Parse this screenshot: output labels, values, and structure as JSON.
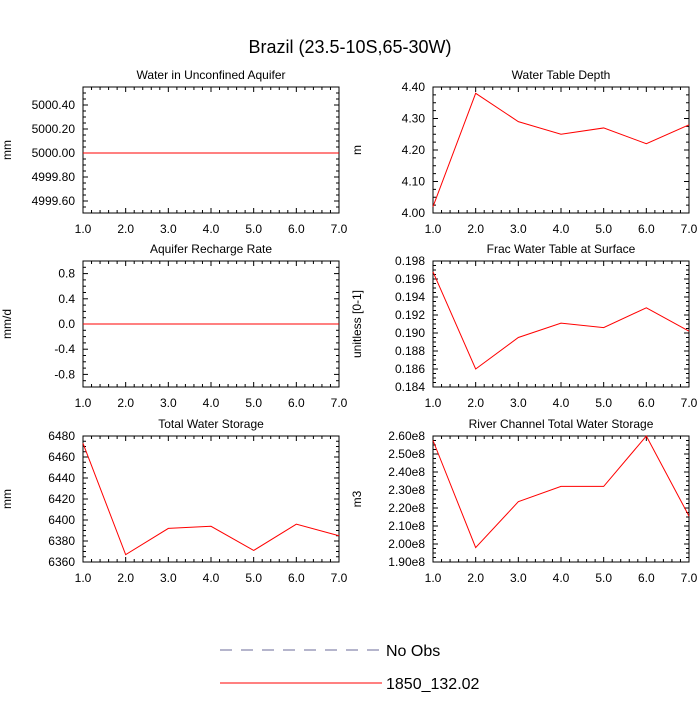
{
  "figure": {
    "title": "Brazil (23.5-10S,65-30W)"
  },
  "legend": {
    "placement": "bottom-center",
    "entries": [
      {
        "label": "No Obs",
        "color": "#6b6b9a",
        "dash": "dashed"
      },
      {
        "label": "1850_132.02",
        "color": "#ff0000",
        "dash": "solid"
      }
    ]
  },
  "chart_data": [
    {
      "type": "line",
      "title": "Water in Unconfined Aquifer",
      "ylabel": "mm",
      "xlim": [
        1,
        7
      ],
      "xticks": [
        1,
        2,
        3,
        4,
        5,
        6,
        7
      ],
      "xtick_labels": [
        "1.0",
        "2.0",
        "3.0",
        "4.0",
        "5.0",
        "6.0",
        "7.0"
      ],
      "ylim": [
        4999.5,
        5000.55
      ],
      "yticks": [
        4999.6,
        4999.8,
        5000.0,
        5000.2,
        5000.4
      ],
      "ytick_labels": [
        "4999.60",
        "4999.80",
        "5000.00",
        "5000.20",
        "5000.40"
      ],
      "series": [
        {
          "name": "1850_132.02",
          "color": "#ff0000",
          "x": [
            1,
            2,
            3,
            4,
            5,
            6,
            7
          ],
          "y": [
            5000.0,
            5000.0,
            5000.0,
            5000.0,
            5000.0,
            5000.0,
            5000.0
          ]
        }
      ]
    },
    {
      "type": "line",
      "title": "Water Table Depth",
      "ylabel": "m",
      "xlim": [
        1,
        7
      ],
      "xticks": [
        1,
        2,
        3,
        4,
        5,
        6,
        7
      ],
      "xtick_labels": [
        "1.0",
        "2.0",
        "3.0",
        "4.0",
        "5.0",
        "6.0",
        "7.0"
      ],
      "ylim": [
        4.0,
        4.4
      ],
      "yticks": [
        4.0,
        4.1,
        4.2,
        4.3,
        4.4
      ],
      "ytick_labels": [
        "4.00",
        "4.10",
        "4.20",
        "4.30",
        "4.40"
      ],
      "series": [
        {
          "name": "1850_132.02",
          "color": "#ff0000",
          "x": [
            1,
            2,
            3,
            4,
            5,
            6,
            7
          ],
          "y": [
            4.02,
            4.38,
            4.29,
            4.25,
            4.27,
            4.22,
            4.28
          ]
        }
      ]
    },
    {
      "type": "line",
      "title": "Aquifer Recharge Rate",
      "ylabel": "mm/d",
      "xlim": [
        1,
        7
      ],
      "xticks": [
        1,
        2,
        3,
        4,
        5,
        6,
        7
      ],
      "xtick_labels": [
        "1.0",
        "2.0",
        "3.0",
        "4.0",
        "5.0",
        "6.0",
        "7.0"
      ],
      "ylim": [
        -1.0,
        1.0
      ],
      "yticks": [
        -0.8,
        -0.4,
        0.0,
        0.4,
        0.8
      ],
      "ytick_labels": [
        "-0.8",
        "-0.4",
        "0.0",
        "0.4",
        "0.8"
      ],
      "series": [
        {
          "name": "1850_132.02",
          "color": "#ff0000",
          "x": [
            1,
            2,
            3,
            4,
            5,
            6,
            7
          ],
          "y": [
            0,
            0,
            0,
            0,
            0,
            0,
            0
          ]
        }
      ]
    },
    {
      "type": "line",
      "title": "Frac Water Table at Surface",
      "ylabel": "unitless [0-1]",
      "xlim": [
        1,
        7
      ],
      "xticks": [
        1,
        2,
        3,
        4,
        5,
        6,
        7
      ],
      "xtick_labels": [
        "1.0",
        "2.0",
        "3.0",
        "4.0",
        "5.0",
        "6.0",
        "7.0"
      ],
      "ylim": [
        0.184,
        0.198
      ],
      "yticks": [
        0.184,
        0.186,
        0.188,
        0.19,
        0.192,
        0.194,
        0.196,
        0.198
      ],
      "ytick_labels": [
        "0.184",
        "0.186",
        "0.188",
        "0.190",
        "0.192",
        "0.194",
        "0.196",
        "0.198"
      ],
      "series": [
        {
          "name": "1850_132.02",
          "color": "#ff0000",
          "x": [
            1,
            2,
            3,
            4,
            5,
            6,
            7
          ],
          "y": [
            0.1968,
            0.186,
            0.1895,
            0.1911,
            0.1906,
            0.1928,
            0.1902
          ]
        }
      ]
    },
    {
      "type": "line",
      "title": "Total Water Storage",
      "ylabel": "mm",
      "xlim": [
        1,
        7
      ],
      "xticks": [
        1,
        2,
        3,
        4,
        5,
        6,
        7
      ],
      "xtick_labels": [
        "1.0",
        "2.0",
        "3.0",
        "4.0",
        "5.0",
        "6.0",
        "7.0"
      ],
      "ylim": [
        6360,
        6480
      ],
      "yticks": [
        6360,
        6380,
        6400,
        6420,
        6440,
        6460,
        6480
      ],
      "ytick_labels": [
        "6360",
        "6380",
        "6400",
        "6420",
        "6440",
        "6460",
        "6480"
      ],
      "series": [
        {
          "name": "1850_132.02",
          "color": "#ff0000",
          "x": [
            1,
            2,
            3,
            4,
            5,
            6,
            7
          ],
          "y": [
            6473,
            6367,
            6392,
            6394,
            6371,
            6396,
            6385
          ]
        }
      ]
    },
    {
      "type": "line",
      "title": "River Channel Total Water Storage",
      "ylabel": "m3",
      "xlim": [
        1,
        7
      ],
      "xticks": [
        1,
        2,
        3,
        4,
        5,
        6,
        7
      ],
      "xtick_labels": [
        "1.0",
        "2.0",
        "3.0",
        "4.0",
        "5.0",
        "6.0",
        "7.0"
      ],
      "ylim": [
        190000000,
        260000000
      ],
      "yticks": [
        190000000,
        200000000,
        210000000,
        220000000,
        230000000,
        240000000,
        250000000,
        260000000
      ],
      "ytick_labels": [
        "1.90e8",
        "2.00e8",
        "2.10e8",
        "2.20e8",
        "2.30e8",
        "2.40e8",
        "2.50e8",
        "2.60e8"
      ],
      "series": [
        {
          "name": "1850_132.02",
          "color": "#ff0000",
          "x": [
            1,
            2,
            3,
            4,
            5,
            6,
            7
          ],
          "y": [
            257500000,
            198000000,
            223500000,
            232000000,
            232000000,
            260000000,
            215500000
          ]
        }
      ]
    }
  ]
}
